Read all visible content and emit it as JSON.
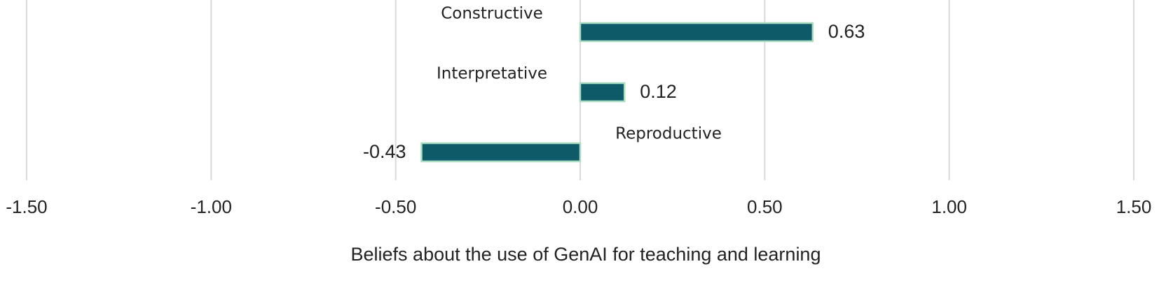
{
  "chart_data": {
    "type": "barh",
    "categories": [
      "Constructive",
      "Interpretative",
      "Reproductive"
    ],
    "values": [
      0.63,
      0.12,
      -0.43
    ],
    "color": "#0e5a68",
    "edge_color": "#a8dcc0",
    "xlabel": "Beliefs about the use of GenAI for teaching and learning",
    "xlim": [
      -1.5,
      1.5
    ],
    "xticks": [
      {
        "value": -1.5,
        "label": "-1.50"
      },
      {
        "value": -1,
        "label": "-1.00"
      },
      {
        "value": -0.5,
        "label": "-0.50"
      },
      {
        "value": 0,
        "label": "0.00"
      },
      {
        "value": 0.5,
        "label": "0.50"
      },
      {
        "value": 1,
        "label": "1.00"
      },
      {
        "value": 1.5,
        "label": "1.50"
      }
    ],
    "grid": true
  }
}
